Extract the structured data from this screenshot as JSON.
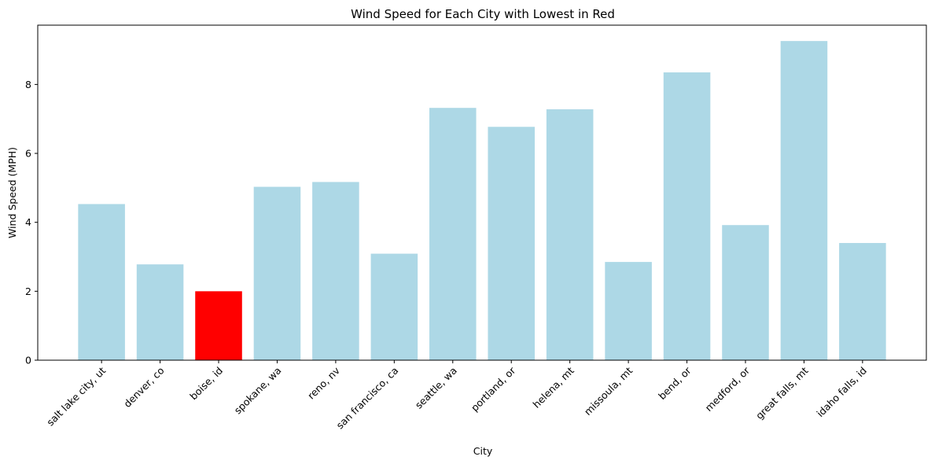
{
  "chart_data": {
    "type": "bar",
    "title": "Wind Speed for Each City with Lowest in Red",
    "xlabel": "City",
    "ylabel": "Wind Speed (MPH)",
    "categories": [
      "salt lake city, ut",
      "denver, co",
      "boise, id",
      "spokane, wa",
      "reno, nv",
      "san francisco, ca",
      "seattle, wa",
      "portland, or",
      "helena, mt",
      "missoula, mt",
      "bend, or",
      "medford, or",
      "great falls, mt",
      "idaho falls, id"
    ],
    "values": [
      4.53,
      2.78,
      2.0,
      5.03,
      5.17,
      3.09,
      7.32,
      6.77,
      7.28,
      2.85,
      8.35,
      3.92,
      9.26,
      3.4
    ],
    "ylim": [
      0,
      9.72
    ],
    "yticks": [
      "0",
      "2",
      "4",
      "6",
      "8"
    ],
    "ytick_values": [
      0,
      2,
      4,
      6,
      8
    ],
    "grid": false,
    "bar_color": "#add8e6",
    "highlight_color": "#ff0000",
    "highlight_index": 2
  }
}
